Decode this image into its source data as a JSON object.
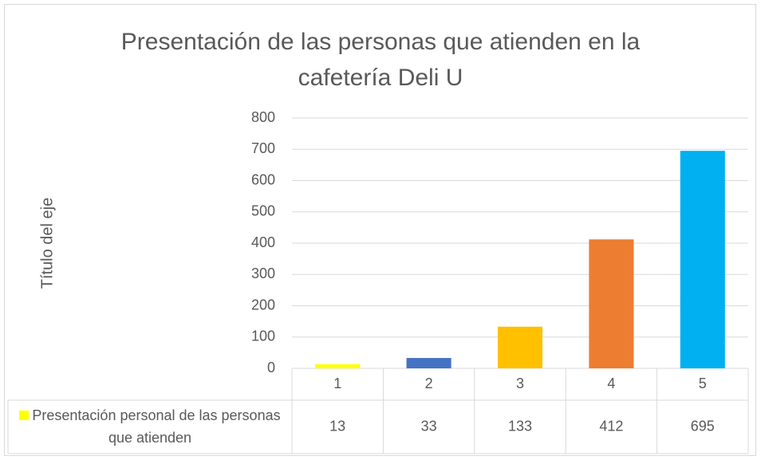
{
  "chart_data": {
    "type": "bar",
    "title": "Presentación de las personas que atienden en la cafetería Deli U",
    "y_label": "Título del eje",
    "categories": [
      "1",
      "2",
      "3",
      "4",
      "5"
    ],
    "series": [
      {
        "name": "Presentación personal de las personas que atienden",
        "color": "#ffff00",
        "point_colors": [
          "#ffff00",
          "#4472c4",
          "#ffc000",
          "#ed7d31",
          "#00b0f0"
        ],
        "values": [
          13,
          33,
          133,
          412,
          695
        ]
      }
    ],
    "ylim": [
      0,
      800
    ],
    "yticks": [
      0,
      100,
      200,
      300,
      400,
      500,
      600,
      700,
      800
    ],
    "grid": true,
    "data_table": true
  }
}
